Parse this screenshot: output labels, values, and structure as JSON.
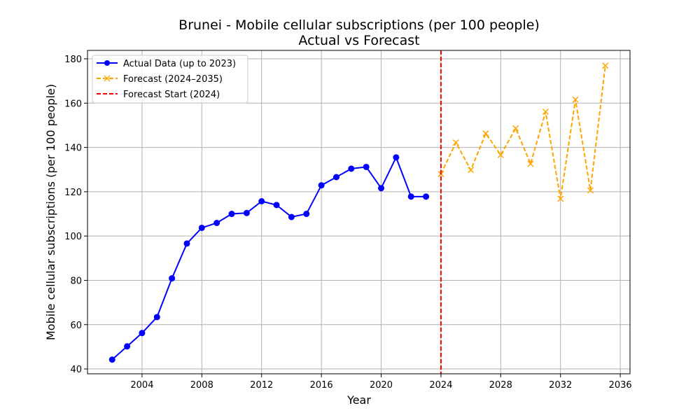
{
  "chart_data": {
    "type": "line",
    "title": "Brunei - Mobile cellular subscriptions (per 100 people)",
    "subtitle": "Actual vs Forecast",
    "xlabel": "Year",
    "ylabel": "Mobile cellular subscriptions (per 100 people)",
    "xlim": [
      2000.35,
      2036.65
    ],
    "ylim": [
      37.8,
      183.8
    ],
    "xticks": [
      2004,
      2008,
      2012,
      2016,
      2020,
      2024,
      2028,
      2032,
      2036
    ],
    "yticks": [
      40,
      60,
      80,
      100,
      120,
      140,
      160,
      180
    ],
    "grid": true,
    "legend_position": "top-left",
    "series": [
      {
        "name": "Actual Data (up to 2023)",
        "color": "#0000ff",
        "style": "solid",
        "marker": "circle",
        "x": [
          2002,
          2003,
          2004,
          2005,
          2006,
          2007,
          2008,
          2009,
          2010,
          2011,
          2012,
          2013,
          2014,
          2015,
          2016,
          2017,
          2018,
          2019,
          2020,
          2021,
          2022,
          2023
        ],
        "y": [
          44.2,
          50.2,
          56.2,
          63.4,
          80.9,
          96.6,
          103.7,
          105.9,
          110.0,
          110.4,
          115.7,
          114.0,
          108.6,
          110.0,
          122.9,
          126.6,
          130.4,
          131.2,
          121.6,
          135.5,
          117.8,
          117.8
        ]
      },
      {
        "name": "Forecast (2024–2035)",
        "color": "#ffa500",
        "style": "dashed",
        "marker": "x",
        "x": [
          2024,
          2025,
          2026,
          2027,
          2028,
          2029,
          2030,
          2031,
          2032,
          2033,
          2034,
          2035
        ],
        "y": [
          128.0,
          142.2,
          129.8,
          146.3,
          136.6,
          148.6,
          132.6,
          156.1,
          116.8,
          161.6,
          120.6,
          176.9
        ]
      }
    ],
    "vlines": [
      {
        "name": "Forecast Start (2024)",
        "x": 2024,
        "color": "#ff0000",
        "style": "dashed"
      }
    ]
  }
}
